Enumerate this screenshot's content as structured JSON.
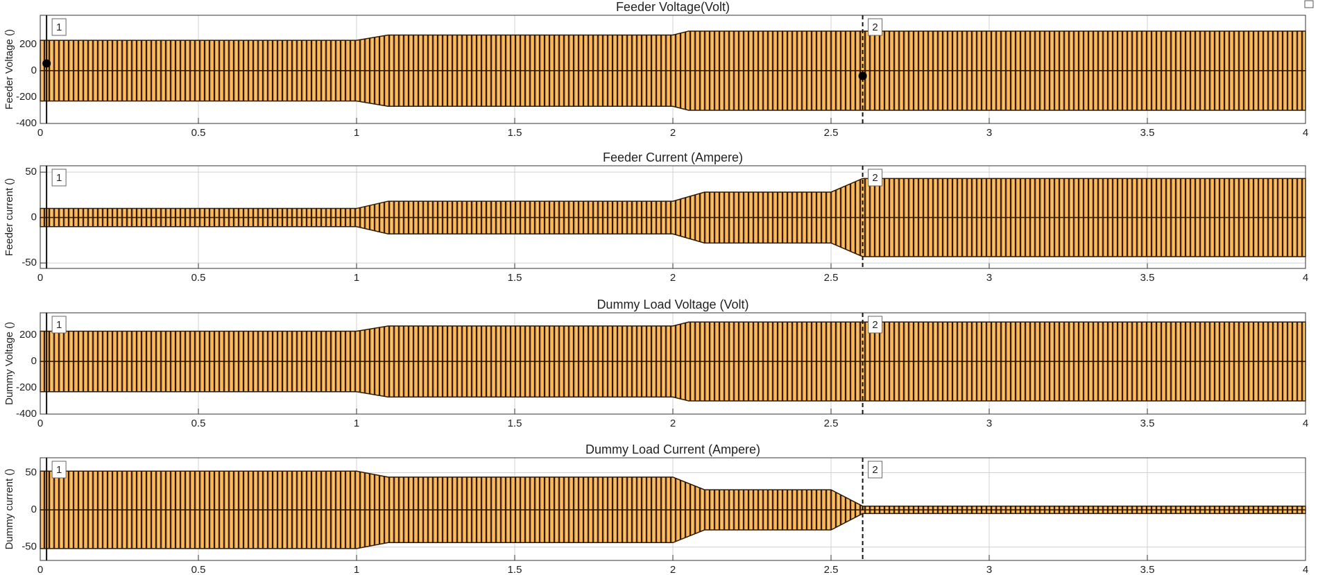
{
  "chart_data": [
    {
      "type": "area",
      "title": "Feeder Voltage(Volt)",
      "ylabel": "Feeder Voltage ()",
      "x": [
        0,
        1,
        1.1,
        2,
        2.05,
        4
      ],
      "series": [
        {
          "color": "#f2a33a",
          "values": [
            230,
            230,
            270,
            270,
            300,
            300
          ]
        },
        {
          "color": "#f2a33a",
          "values": [
            -230,
            -230,
            -270,
            -270,
            -300,
            -300
          ]
        }
      ],
      "xlim": [
        0,
        4
      ],
      "xticks": [
        0,
        0.5,
        1,
        1.5,
        2,
        2.5,
        3,
        3.5,
        4
      ],
      "ylim": [
        -400,
        420
      ],
      "yticks": [
        -400,
        -200,
        0,
        200
      ],
      "grid": true,
      "cursors": [
        {
          "x": 0.02,
          "label": "1"
        },
        {
          "x": 2.6,
          "label": "2"
        }
      ],
      "points": {
        "x": [
          0.02,
          2.6
        ],
        "values": [
          55,
          -40
        ]
      }
    },
    {
      "type": "area",
      "title": "Feeder Current (Ampere)",
      "ylabel": "Feeder current ()",
      "x": [
        0,
        1,
        1.1,
        2,
        2.1,
        2.5,
        2.6,
        4
      ],
      "series": [
        {
          "color": "#f2a33a",
          "values": [
            10,
            10,
            18,
            18,
            28,
            28,
            43,
            43
          ]
        },
        {
          "color": "#f2a33a",
          "values": [
            -10,
            -10,
            -18,
            -18,
            -28,
            -28,
            -43,
            -43
          ]
        }
      ],
      "xlim": [
        0,
        4
      ],
      "xticks": [
        0,
        0.5,
        1,
        1.5,
        2,
        2.5,
        3,
        3.5,
        4
      ],
      "ylim": [
        -56,
        57
      ],
      "yticks": [
        -50,
        0,
        50
      ],
      "grid": true,
      "cursors": [
        {
          "x": 0.02,
          "label": "1"
        },
        {
          "x": 2.6,
          "label": "2"
        }
      ]
    },
    {
      "type": "area",
      "title": "Dummy Load Voltage (Volt)",
      "ylabel": "Dummy Voltage ()",
      "x": [
        0,
        1,
        1.1,
        2,
        2.05,
        4
      ],
      "series": [
        {
          "color": "#f2a33a",
          "values": [
            230,
            230,
            270,
            270,
            300,
            300
          ]
        },
        {
          "color": "#f2a33a",
          "values": [
            -230,
            -230,
            -270,
            -270,
            -300,
            -300
          ]
        }
      ],
      "xlim": [
        0,
        4
      ],
      "xticks": [
        0,
        0.5,
        1,
        1.5,
        2,
        2.5,
        3,
        3.5,
        4
      ],
      "ylim": [
        -400,
        370
      ],
      "yticks": [
        -400,
        -200,
        0,
        200
      ],
      "grid": true,
      "cursors": [
        {
          "x": 0.02,
          "label": "1"
        },
        {
          "x": 2.6,
          "label": "2"
        }
      ]
    },
    {
      "type": "area",
      "title": "Dummy Load Current (Ampere)",
      "ylabel": "Dummy current ()",
      "x": [
        0,
        1,
        1.1,
        2,
        2.1,
        2.5,
        2.6,
        4
      ],
      "series": [
        {
          "color": "#f2a33a",
          "values": [
            52,
            52,
            44,
            44,
            27,
            27,
            5,
            5
          ]
        },
        {
          "color": "#f2a33a",
          "values": [
            -52,
            -52,
            -44,
            -44,
            -27,
            -27,
            -5,
            -5
          ]
        }
      ],
      "xlim": [
        0,
        4
      ],
      "xticks": [
        0,
        0.5,
        1,
        1.5,
        2,
        2.5,
        3,
        3.5,
        4
      ],
      "ylim": [
        -68,
        70
      ],
      "yticks": [
        -50,
        0,
        50
      ],
      "grid": true,
      "cursors": [
        {
          "x": 0.02,
          "label": "1"
        },
        {
          "x": 2.6,
          "label": "2"
        }
      ]
    }
  ]
}
